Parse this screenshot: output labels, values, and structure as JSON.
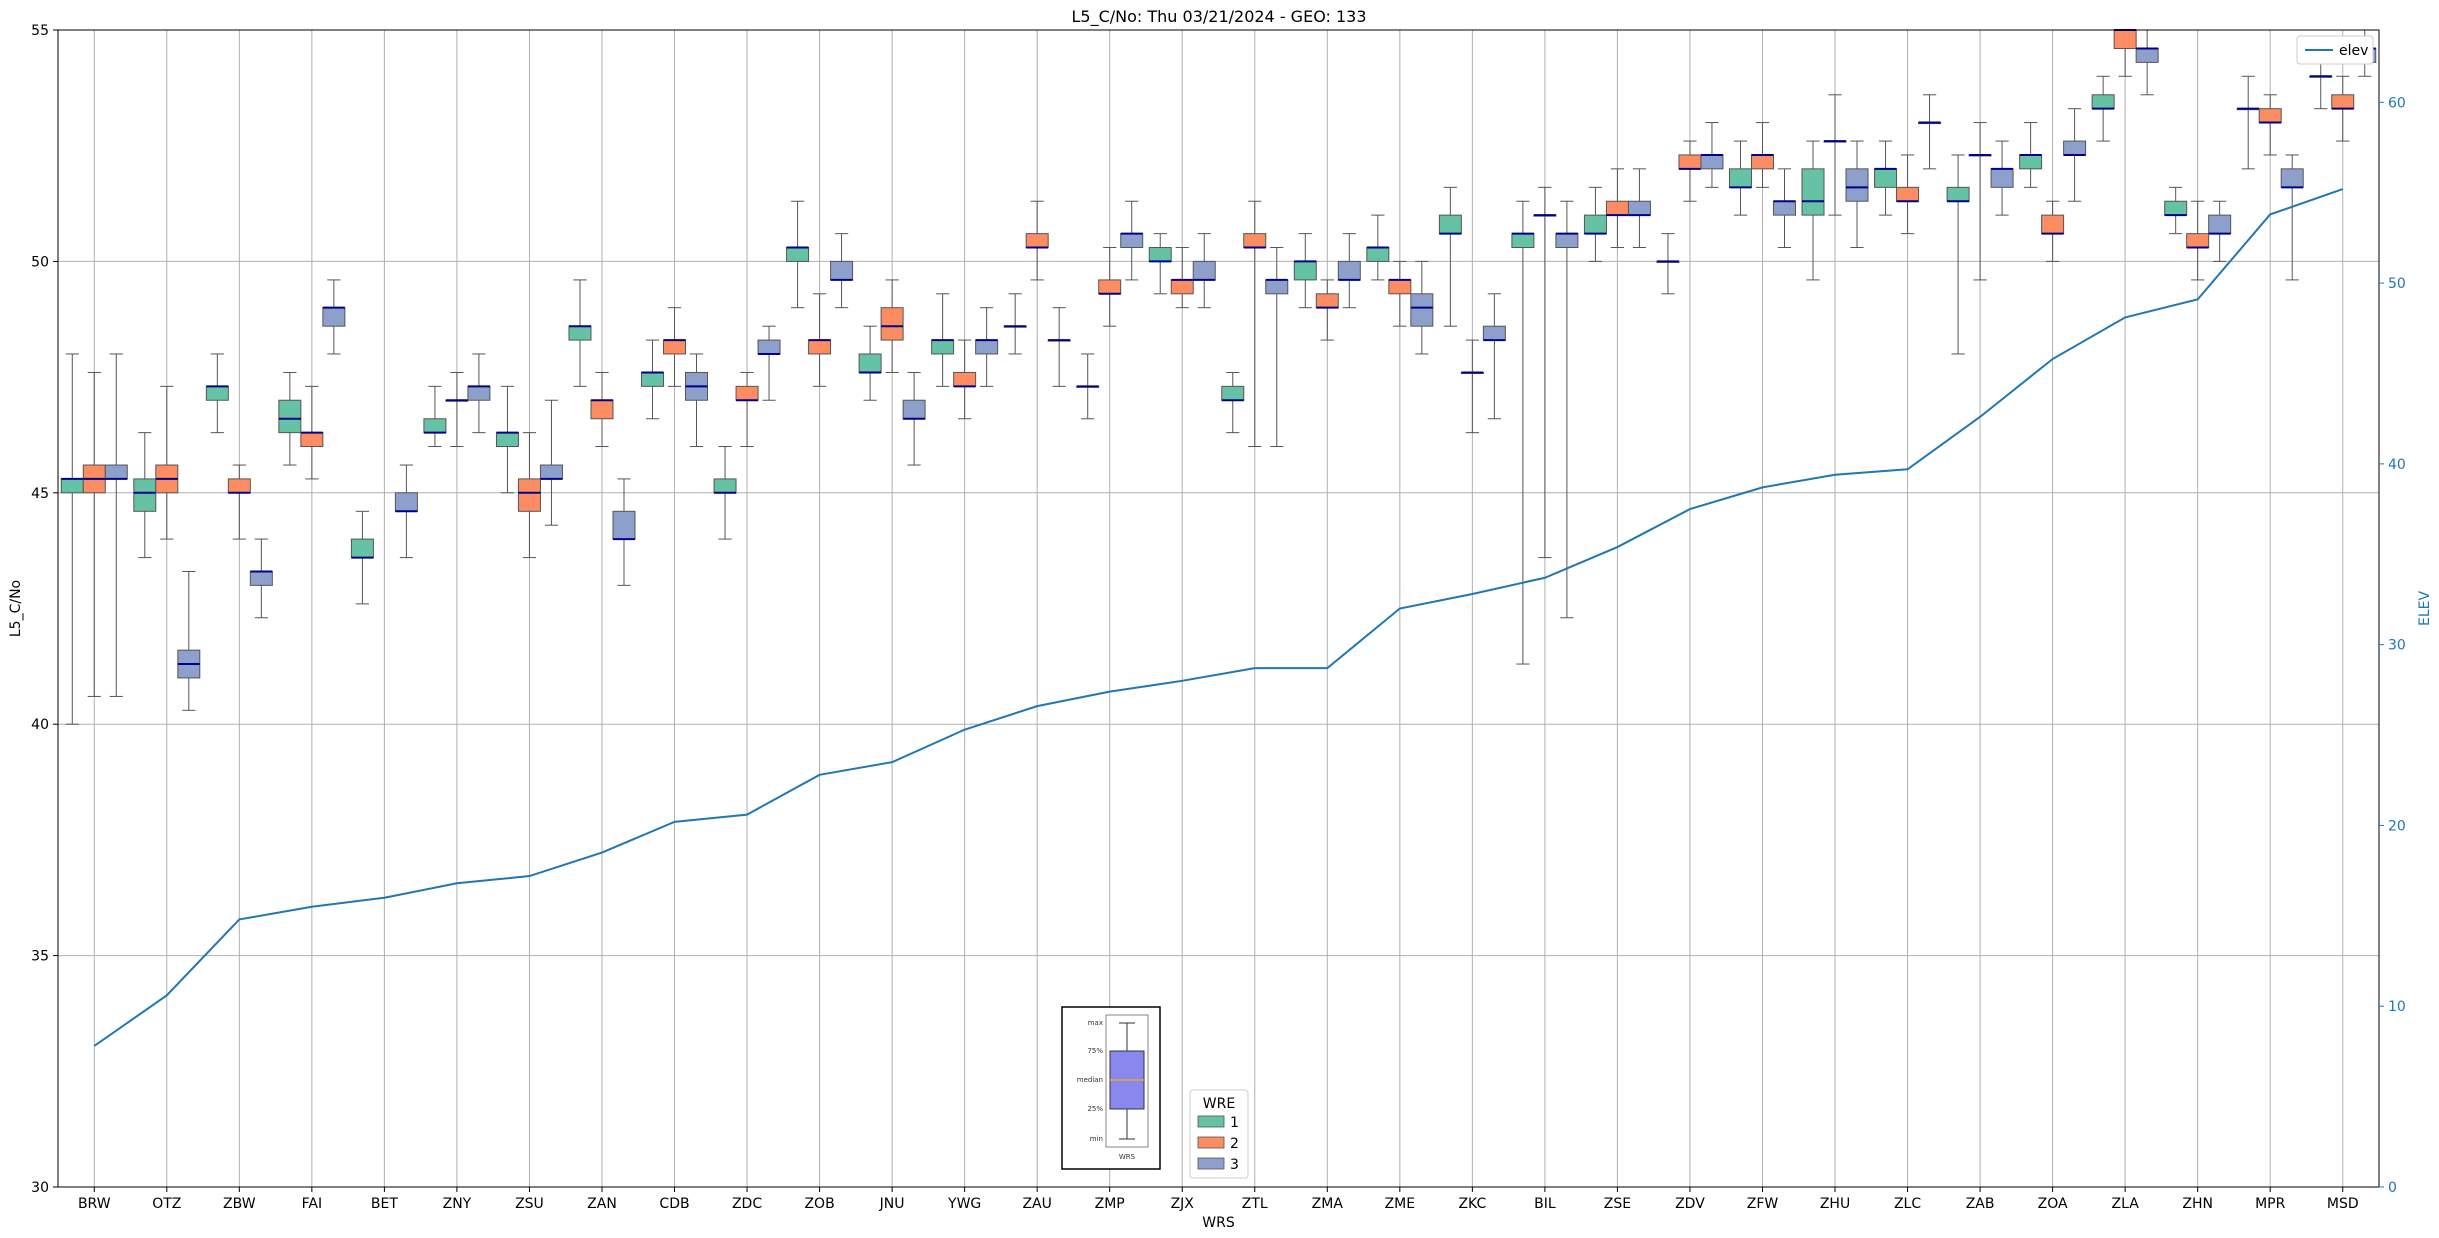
{
  "chart_data": {
    "type": "box",
    "title": "L5_C/No: Thu 03/21/2024 - GEO: 133",
    "xlabel": "WRS",
    "ylabel": "L5_C/No",
    "ylabel_right": "ELEV",
    "ylim": [
      30,
      55
    ],
    "ylim_right": [
      0,
      64
    ],
    "yticks": [
      30,
      35,
      40,
      45,
      50,
      55
    ],
    "yticks_right": [
      0,
      10,
      20,
      30,
      40,
      50,
      60
    ],
    "grid": true,
    "categories": [
      "BRW",
      "OTZ",
      "ZBW",
      "FAI",
      "BET",
      "ZNY",
      "ZSU",
      "ZAN",
      "CDB",
      "ZDC",
      "ZOB",
      "JNU",
      "YWG",
      "ZAU",
      "ZMP",
      "ZJX",
      "ZTL",
      "ZMA",
      "ZME",
      "ZKC",
      "BIL",
      "ZSE",
      "ZDV",
      "ZFW",
      "ZHU",
      "ZLC",
      "ZAB",
      "ZOA",
      "ZLA",
      "ZHN",
      "MPR",
      "MSD"
    ],
    "groups": [
      {
        "name": "1",
        "color": "#66c2a5"
      },
      {
        "name": "2",
        "color": "#fc8d62"
      },
      {
        "name": "3",
        "color": "#8da0cb"
      }
    ],
    "boxes": [
      {
        "site": "BRW",
        "wre": 1,
        "min": 40.0,
        "q1": 45.0,
        "median": 45.3,
        "q3": 45.3,
        "max": 48.0
      },
      {
        "site": "BRW",
        "wre": 2,
        "min": 40.6,
        "q1": 45.0,
        "median": 45.3,
        "q3": 45.6,
        "max": 47.6
      },
      {
        "site": "BRW",
        "wre": 3,
        "min": 40.6,
        "q1": 45.3,
        "median": 45.3,
        "q3": 45.6,
        "max": 48.0
      },
      {
        "site": "OTZ",
        "wre": 1,
        "min": 43.6,
        "q1": 44.6,
        "median": 45.0,
        "q3": 45.3,
        "max": 46.3
      },
      {
        "site": "OTZ",
        "wre": 2,
        "min": 44.0,
        "q1": 45.0,
        "median": 45.3,
        "q3": 45.6,
        "max": 47.3
      },
      {
        "site": "OTZ",
        "wre": 3,
        "min": 40.3,
        "q1": 41.0,
        "median": 41.3,
        "q3": 41.6,
        "max": 43.3
      },
      {
        "site": "ZBW",
        "wre": 1,
        "min": 46.3,
        "q1": 47.0,
        "median": 47.3,
        "q3": 47.3,
        "max": 48.0
      },
      {
        "site": "ZBW",
        "wre": 2,
        "min": 44.0,
        "q1": 45.0,
        "median": 45.0,
        "q3": 45.3,
        "max": 45.6
      },
      {
        "site": "ZBW",
        "wre": 3,
        "min": 42.3,
        "q1": 43.0,
        "median": 43.3,
        "q3": 43.3,
        "max": 44.0
      },
      {
        "site": "FAI",
        "wre": 1,
        "min": 45.6,
        "q1": 46.3,
        "median": 46.6,
        "q3": 47.0,
        "max": 47.6
      },
      {
        "site": "FAI",
        "wre": 2,
        "min": 45.3,
        "q1": 46.0,
        "median": 46.3,
        "q3": 46.3,
        "max": 47.3
      },
      {
        "site": "FAI",
        "wre": 3,
        "min": 48.0,
        "q1": 48.6,
        "median": 49.0,
        "q3": 49.0,
        "max": 49.6
      },
      {
        "site": "BET",
        "wre": 1,
        "min": 42.6,
        "q1": 43.6,
        "median": 43.6,
        "q3": 44.0,
        "max": 44.6
      },
      {
        "site": "BET",
        "wre": 3,
        "min": 43.6,
        "q1": 44.6,
        "median": 44.6,
        "q3": 45.0,
        "max": 45.6
      },
      {
        "site": "ZNY",
        "wre": 1,
        "min": 46.0,
        "q1": 46.3,
        "median": 46.3,
        "q3": 46.6,
        "max": 47.3
      },
      {
        "site": "ZNY",
        "wre": 2,
        "min": 46.0,
        "q1": 47.0,
        "median": 47.0,
        "q3": 47.0,
        "max": 47.6
      },
      {
        "site": "ZNY",
        "wre": 3,
        "min": 46.3,
        "q1": 47.0,
        "median": 47.3,
        "q3": 47.3,
        "max": 48.0
      },
      {
        "site": "ZSU",
        "wre": 1,
        "min": 45.0,
        "q1": 46.0,
        "median": 46.3,
        "q3": 46.3,
        "max": 47.3
      },
      {
        "site": "ZSU",
        "wre": 2,
        "min": 43.6,
        "q1": 44.6,
        "median": 45.0,
        "q3": 45.3,
        "max": 46.3
      },
      {
        "site": "ZSU",
        "wre": 3,
        "min": 44.3,
        "q1": 45.3,
        "median": 45.3,
        "q3": 45.6,
        "max": 47.0
      },
      {
        "site": "ZAN",
        "wre": 1,
        "min": 47.3,
        "q1": 48.3,
        "median": 48.6,
        "q3": 48.6,
        "max": 49.6
      },
      {
        "site": "ZAN",
        "wre": 2,
        "min": 46.0,
        "q1": 46.6,
        "median": 47.0,
        "q3": 47.0,
        "max": 47.6
      },
      {
        "site": "ZAN",
        "wre": 3,
        "min": 43.0,
        "q1": 44.0,
        "median": 44.0,
        "q3": 44.6,
        "max": 45.3
      },
      {
        "site": "CDB",
        "wre": 1,
        "min": 46.6,
        "q1": 47.3,
        "median": 47.6,
        "q3": 47.6,
        "max": 48.3
      },
      {
        "site": "CDB",
        "wre": 2,
        "min": 47.3,
        "q1": 48.0,
        "median": 48.3,
        "q3": 48.3,
        "max": 49.0
      },
      {
        "site": "CDB",
        "wre": 3,
        "min": 46.0,
        "q1": 47.0,
        "median": 47.3,
        "q3": 47.6,
        "max": 48.0
      },
      {
        "site": "ZDC",
        "wre": 1,
        "min": 44.0,
        "q1": 45.0,
        "median": 45.0,
        "q3": 45.3,
        "max": 46.0
      },
      {
        "site": "ZDC",
        "wre": 2,
        "min": 46.0,
        "q1": 47.0,
        "median": 47.0,
        "q3": 47.3,
        "max": 47.6
      },
      {
        "site": "ZDC",
        "wre": 3,
        "min": 47.0,
        "q1": 48.0,
        "median": 48.0,
        "q3": 48.3,
        "max": 48.6
      },
      {
        "site": "ZOB",
        "wre": 1,
        "min": 49.0,
        "q1": 50.0,
        "median": 50.3,
        "q3": 50.3,
        "max": 51.3
      },
      {
        "site": "ZOB",
        "wre": 2,
        "min": 47.3,
        "q1": 48.0,
        "median": 48.3,
        "q3": 48.3,
        "max": 49.3
      },
      {
        "site": "ZOB",
        "wre": 3,
        "min": 49.0,
        "q1": 49.6,
        "median": 49.6,
        "q3": 50.0,
        "max": 50.6
      },
      {
        "site": "JNU",
        "wre": 1,
        "min": 47.0,
        "q1": 47.6,
        "median": 47.6,
        "q3": 48.0,
        "max": 48.6
      },
      {
        "site": "JNU",
        "wre": 2,
        "min": 47.6,
        "q1": 48.3,
        "median": 48.6,
        "q3": 49.0,
        "max": 49.6
      },
      {
        "site": "JNU",
        "wre": 3,
        "min": 45.6,
        "q1": 46.6,
        "median": 46.6,
        "q3": 47.0,
        "max": 47.6
      },
      {
        "site": "YWG",
        "wre": 1,
        "min": 47.3,
        "q1": 48.0,
        "median": 48.3,
        "q3": 48.3,
        "max": 49.3
      },
      {
        "site": "YWG",
        "wre": 2,
        "min": 46.6,
        "q1": 47.3,
        "median": 47.3,
        "q3": 47.6,
        "max": 48.3
      },
      {
        "site": "YWG",
        "wre": 3,
        "min": 47.3,
        "q1": 48.0,
        "median": 48.3,
        "q3": 48.3,
        "max": 49.0
      },
      {
        "site": "ZAU",
        "wre": 1,
        "min": 48.0,
        "q1": 48.6,
        "median": 48.6,
        "q3": 48.6,
        "max": 49.3
      },
      {
        "site": "ZAU",
        "wre": 2,
        "min": 49.6,
        "q1": 50.3,
        "median": 50.3,
        "q3": 50.6,
        "max": 51.3
      },
      {
        "site": "ZAU",
        "wre": 3,
        "min": 47.3,
        "q1": 48.3,
        "median": 48.3,
        "q3": 48.3,
        "max": 49.0
      },
      {
        "site": "ZMP",
        "wre": 1,
        "min": 46.6,
        "q1": 47.3,
        "median": 47.3,
        "q3": 47.3,
        "max": 48.0
      },
      {
        "site": "ZMP",
        "wre": 2,
        "min": 48.6,
        "q1": 49.3,
        "median": 49.3,
        "q3": 49.6,
        "max": 50.3
      },
      {
        "site": "ZMP",
        "wre": 3,
        "min": 49.6,
        "q1": 50.3,
        "median": 50.6,
        "q3": 50.6,
        "max": 51.3
      },
      {
        "site": "ZJX",
        "wre": 1,
        "min": 49.3,
        "q1": 50.0,
        "median": 50.0,
        "q3": 50.3,
        "max": 50.6
      },
      {
        "site": "ZJX",
        "wre": 2,
        "min": 49.0,
        "q1": 49.3,
        "median": 49.6,
        "q3": 49.6,
        "max": 50.3
      },
      {
        "site": "ZJX",
        "wre": 3,
        "min": 49.0,
        "q1": 49.6,
        "median": 49.6,
        "q3": 50.0,
        "max": 50.6
      },
      {
        "site": "ZTL",
        "wre": 1,
        "min": 46.3,
        "q1": 47.0,
        "median": 47.0,
        "q3": 47.3,
        "max": 47.6
      },
      {
        "site": "ZTL",
        "wre": 2,
        "min": 46.0,
        "q1": 50.3,
        "median": 50.3,
        "q3": 50.6,
        "max": 51.3
      },
      {
        "site": "ZTL",
        "wre": 3,
        "min": 46.0,
        "q1": 49.3,
        "median": 49.6,
        "q3": 49.6,
        "max": 50.3
      },
      {
        "site": "ZMA",
        "wre": 1,
        "min": 49.0,
        "q1": 49.6,
        "median": 50.0,
        "q3": 50.0,
        "max": 50.6
      },
      {
        "site": "ZMA",
        "wre": 2,
        "min": 48.3,
        "q1": 49.0,
        "median": 49.0,
        "q3": 49.3,
        "max": 49.6
      },
      {
        "site": "ZMA",
        "wre": 3,
        "min": 49.0,
        "q1": 49.6,
        "median": 49.6,
        "q3": 50.0,
        "max": 50.6
      },
      {
        "site": "ZME",
        "wre": 1,
        "min": 49.6,
        "q1": 50.0,
        "median": 50.3,
        "q3": 50.3,
        "max": 51.0
      },
      {
        "site": "ZME",
        "wre": 2,
        "min": 48.6,
        "q1": 49.3,
        "median": 49.6,
        "q3": 49.6,
        "max": 50.0
      },
      {
        "site": "ZME",
        "wre": 3,
        "min": 48.0,
        "q1": 48.6,
        "median": 49.0,
        "q3": 49.3,
        "max": 50.0
      },
      {
        "site": "ZKC",
        "wre": 1,
        "min": 48.6,
        "q1": 50.6,
        "median": 50.6,
        "q3": 51.0,
        "max": 51.6
      },
      {
        "site": "ZKC",
        "wre": 2,
        "min": 46.3,
        "q1": 47.6,
        "median": 47.6,
        "q3": 47.6,
        "max": 48.3
      },
      {
        "site": "ZKC",
        "wre": 3,
        "min": 46.6,
        "q1": 48.3,
        "median": 48.3,
        "q3": 48.6,
        "max": 49.3
      },
      {
        "site": "BIL",
        "wre": 1,
        "min": 41.3,
        "q1": 50.3,
        "median": 50.6,
        "q3": 50.6,
        "max": 51.3
      },
      {
        "site": "BIL",
        "wre": 2,
        "min": 43.6,
        "q1": 51.0,
        "median": 51.0,
        "q3": 51.0,
        "max": 51.6
      },
      {
        "site": "BIL",
        "wre": 3,
        "min": 42.3,
        "q1": 50.3,
        "median": 50.6,
        "q3": 50.6,
        "max": 51.3
      },
      {
        "site": "ZSE",
        "wre": 1,
        "min": 50.0,
        "q1": 50.6,
        "median": 50.6,
        "q3": 51.0,
        "max": 51.6
      },
      {
        "site": "ZSE",
        "wre": 2,
        "min": 50.3,
        "q1": 51.0,
        "median": 51.0,
        "q3": 51.3,
        "max": 52.0
      },
      {
        "site": "ZSE",
        "wre": 3,
        "min": 50.3,
        "q1": 51.0,
        "median": 51.0,
        "q3": 51.3,
        "max": 52.0
      },
      {
        "site": "ZDV",
        "wre": 1,
        "min": 49.3,
        "q1": 50.0,
        "median": 50.0,
        "q3": 50.0,
        "max": 50.6
      },
      {
        "site": "ZDV",
        "wre": 2,
        "min": 51.3,
        "q1": 52.0,
        "median": 52.0,
        "q3": 52.3,
        "max": 52.6
      },
      {
        "site": "ZDV",
        "wre": 3,
        "min": 51.6,
        "q1": 52.0,
        "median": 52.3,
        "q3": 52.3,
        "max": 53.0
      },
      {
        "site": "ZFW",
        "wre": 1,
        "min": 51.0,
        "q1": 51.6,
        "median": 51.6,
        "q3": 52.0,
        "max": 52.6
      },
      {
        "site": "ZFW",
        "wre": 2,
        "min": 51.6,
        "q1": 52.0,
        "median": 52.3,
        "q3": 52.3,
        "max": 53.0
      },
      {
        "site": "ZFW",
        "wre": 3,
        "min": 50.3,
        "q1": 51.0,
        "median": 51.3,
        "q3": 51.3,
        "max": 52.0
      },
      {
        "site": "ZHU",
        "wre": 1,
        "min": 49.6,
        "q1": 51.0,
        "median": 51.3,
        "q3": 52.0,
        "max": 52.6
      },
      {
        "site": "ZHU",
        "wre": 2,
        "min": 51.0,
        "q1": 52.6,
        "median": 52.6,
        "q3": 52.6,
        "max": 53.6
      },
      {
        "site": "ZHU",
        "wre": 3,
        "min": 50.3,
        "q1": 51.3,
        "median": 51.6,
        "q3": 52.0,
        "max": 52.6
      },
      {
        "site": "ZLC",
        "wre": 1,
        "min": 51.0,
        "q1": 51.6,
        "median": 52.0,
        "q3": 52.0,
        "max": 52.6
      },
      {
        "site": "ZLC",
        "wre": 2,
        "min": 50.6,
        "q1": 51.3,
        "median": 51.3,
        "q3": 51.6,
        "max": 52.3
      },
      {
        "site": "ZLC",
        "wre": 3,
        "min": 52.0,
        "q1": 53.0,
        "median": 53.0,
        "q3": 53.0,
        "max": 53.6
      },
      {
        "site": "ZAB",
        "wre": 1,
        "min": 48.0,
        "q1": 51.3,
        "median": 51.3,
        "q3": 51.6,
        "max": 52.3
      },
      {
        "site": "ZAB",
        "wre": 2,
        "min": 49.6,
        "q1": 52.3,
        "median": 52.3,
        "q3": 52.3,
        "max": 53.0
      },
      {
        "site": "ZAB",
        "wre": 3,
        "min": 51.0,
        "q1": 51.6,
        "median": 52.0,
        "q3": 52.0,
        "max": 52.6
      },
      {
        "site": "ZOA",
        "wre": 1,
        "min": 51.6,
        "q1": 52.0,
        "median": 52.3,
        "q3": 52.3,
        "max": 53.0
      },
      {
        "site": "ZOA",
        "wre": 2,
        "min": 50.0,
        "q1": 50.6,
        "median": 50.6,
        "q3": 51.0,
        "max": 51.3
      },
      {
        "site": "ZOA",
        "wre": 3,
        "min": 51.3,
        "q1": 52.3,
        "median": 52.3,
        "q3": 52.6,
        "max": 53.3
      },
      {
        "site": "ZLA",
        "wre": 1,
        "min": 52.6,
        "q1": 53.3,
        "median": 53.3,
        "q3": 53.6,
        "max": 54.0
      },
      {
        "site": "ZLA",
        "wre": 2,
        "min": 54.0,
        "q1": 54.6,
        "median": 55.0,
        "q3": 55.0,
        "max": 55.0
      },
      {
        "site": "ZLA",
        "wre": 3,
        "min": 53.6,
        "q1": 54.3,
        "median": 54.6,
        "q3": 54.6,
        "max": 55.0
      },
      {
        "site": "ZHN",
        "wre": 1,
        "min": 50.6,
        "q1": 51.0,
        "median": 51.0,
        "q3": 51.3,
        "max": 51.6
      },
      {
        "site": "ZHN",
        "wre": 2,
        "min": 49.6,
        "q1": 50.3,
        "median": 50.3,
        "q3": 50.6,
        "max": 51.3
      },
      {
        "site": "ZHN",
        "wre": 3,
        "min": 50.0,
        "q1": 50.6,
        "median": 50.6,
        "q3": 51.0,
        "max": 51.3
      },
      {
        "site": "MPR",
        "wre": 1,
        "min": 52.0,
        "q1": 53.3,
        "median": 53.3,
        "q3": 53.3,
        "max": 54.0
      },
      {
        "site": "MPR",
        "wre": 2,
        "min": 52.3,
        "q1": 53.0,
        "median": 53.0,
        "q3": 53.3,
        "max": 53.6
      },
      {
        "site": "MPR",
        "wre": 3,
        "min": 49.6,
        "q1": 51.6,
        "median": 51.6,
        "q3": 52.0,
        "max": 52.3
      },
      {
        "site": "MSD",
        "wre": 1,
        "min": 53.3,
        "q1": 54.0,
        "median": 54.0,
        "q3": 54.0,
        "max": 54.6
      },
      {
        "site": "MSD",
        "wre": 2,
        "min": 52.6,
        "q1": 53.3,
        "median": 53.3,
        "q3": 53.6,
        "max": 54.0
      },
      {
        "site": "MSD",
        "wre": 3,
        "min": 54.0,
        "q1": 54.3,
        "median": 54.6,
        "q3": 54.6,
        "max": 55.0
      }
    ],
    "elev_series": {
      "name": "elev",
      "color": "#1f77b4",
      "values": [
        7.8,
        10.6,
        14.8,
        15.5,
        16.0,
        16.8,
        17.2,
        18.5,
        20.2,
        20.6,
        22.8,
        23.5,
        25.3,
        26.6,
        27.4,
        28.0,
        28.7,
        28.7,
        32.0,
        32.8,
        33.7,
        35.4,
        37.5,
        38.7,
        39.4,
        39.7,
        42.6,
        45.8,
        48.1,
        49.1,
        53.8,
        55.2
      ]
    },
    "legend_wre": {
      "title": "WRE",
      "placement": "lower-center"
    },
    "legend_elev": {
      "placement": "upper-right"
    },
    "inset": {
      "labels": [
        "max",
        "75%",
        "median",
        "25%",
        "min"
      ],
      "xlabel": "WRS",
      "box_color": "#8888ee",
      "median_color": "#f5a623"
    }
  }
}
